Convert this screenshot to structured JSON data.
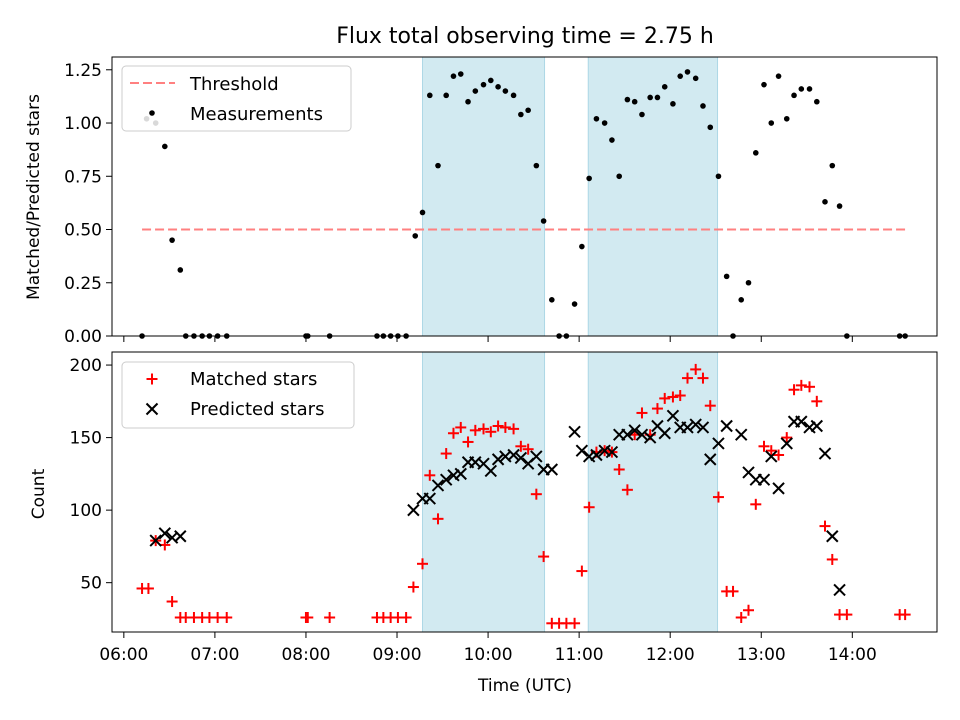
{
  "figure": {
    "title": "Flux total observing time = 2.75 h"
  },
  "colors": {
    "threshold": "#ff8080",
    "measurement": "#000000",
    "matched": "#ff0000",
    "predicted": "#000000",
    "span_fill": "#add8e6"
  },
  "chart_data": [
    {
      "type": "scatter",
      "ylabel": "Matched/Predicted stars",
      "xlim": [
        5.87,
        14.93
      ],
      "ylim": [
        0,
        1.31
      ],
      "yticks": [
        0.0,
        0.25,
        0.5,
        0.75,
        1.0,
        1.25
      ],
      "ytick_labels": [
        "0.00",
        "0.25",
        "0.50",
        "0.75",
        "1.00",
        "1.25"
      ],
      "highlight_spans": [
        [
          9.28,
          10.62
        ],
        [
          11.1,
          12.52
        ]
      ],
      "legend": {
        "position": "upper-left",
        "entries": [
          "Threshold",
          "Measurements"
        ]
      },
      "series": [
        {
          "name": "Threshold",
          "kind": "dashed-line",
          "x": [
            6.2,
            14.6
          ],
          "y": [
            0.5,
            0.5
          ]
        },
        {
          "name": "Measurements",
          "kind": "dot",
          "x": [
            6.2,
            6.25,
            6.35,
            6.45,
            6.53,
            6.62,
            6.68,
            6.77,
            6.86,
            6.94,
            7.03,
            7.13,
            8.0,
            8.02,
            8.26,
            8.78,
            8.85,
            8.93,
            9.01,
            9.1,
            9.2,
            9.28,
            9.36,
            9.45,
            9.54,
            9.62,
            9.7,
            9.78,
            9.86,
            9.95,
            10.03,
            10.11,
            10.19,
            10.28,
            10.36,
            10.44,
            10.53,
            10.61,
            10.7,
            10.78,
            10.86,
            10.95,
            11.03,
            11.11,
            11.19,
            11.28,
            11.36,
            11.44,
            11.53,
            11.61,
            11.69,
            11.78,
            11.86,
            11.94,
            12.03,
            12.11,
            12.19,
            12.28,
            12.36,
            12.44,
            12.53,
            12.62,
            12.69,
            12.78,
            12.86,
            12.94,
            13.03,
            13.11,
            13.19,
            13.28,
            13.36,
            13.44,
            13.53,
            13.61,
            13.7,
            13.78,
            13.86,
            13.94,
            14.52,
            14.58
          ],
          "y": [
            0.0,
            1.02,
            1.0,
            0.89,
            0.45,
            0.31,
            0.0,
            0.0,
            0.0,
            0.0,
            0.0,
            0.0,
            0.0,
            0.0,
            0.0,
            0.0,
            0.0,
            0.0,
            0.0,
            0.0,
            0.47,
            0.58,
            1.13,
            0.8,
            1.13,
            1.22,
            1.23,
            1.1,
            1.15,
            1.18,
            1.2,
            1.17,
            1.15,
            1.13,
            1.04,
            1.06,
            0.8,
            0.54,
            0.17,
            0.0,
            0.0,
            0.15,
            0.42,
            0.74,
            1.02,
            1.0,
            0.92,
            0.75,
            1.11,
            1.1,
            1.04,
            1.12,
            1.12,
            1.17,
            1.09,
            1.22,
            1.24,
            1.21,
            1.08,
            0.98,
            0.75,
            0.28,
            0.0,
            0.17,
            0.25,
            0.86,
            1.18,
            1.0,
            1.22,
            1.02,
            1.13,
            1.16,
            1.16,
            1.1,
            0.63,
            0.8,
            0.61,
            0.0,
            0.0,
            0.0
          ]
        }
      ]
    },
    {
      "type": "scatter",
      "xlabel": "Time (UTC)",
      "ylabel": "Count",
      "xlim": [
        5.87,
        14.93
      ],
      "ylim": [
        16,
        209
      ],
      "xticks": [
        6,
        7,
        8,
        9,
        10,
        11,
        12,
        13,
        14
      ],
      "xtick_labels": [
        "06:00",
        "07:00",
        "08:00",
        "09:00",
        "10:00",
        "11:00",
        "12:00",
        "13:00",
        "14:00"
      ],
      "yticks": [
        50,
        100,
        150,
        200
      ],
      "ytick_labels": [
        "50",
        "100",
        "150",
        "200"
      ],
      "highlight_spans": [
        [
          9.28,
          10.62
        ],
        [
          11.1,
          12.52
        ]
      ],
      "legend": {
        "position": "upper-left",
        "entries": [
          "Matched stars",
          "Predicted stars"
        ]
      },
      "series": [
        {
          "name": "Matched stars",
          "kind": "plus",
          "x": [
            6.2,
            6.27,
            6.35,
            6.45,
            6.53,
            6.62,
            6.68,
            6.77,
            6.86,
            6.94,
            7.03,
            7.13,
            8.0,
            8.02,
            8.26,
            8.78,
            8.85,
            8.93,
            9.01,
            9.1,
            9.18,
            9.28,
            9.36,
            9.45,
            9.54,
            9.62,
            9.7,
            9.78,
            9.86,
            9.95,
            10.03,
            10.11,
            10.19,
            10.28,
            10.36,
            10.44,
            10.53,
            10.61,
            10.7,
            10.78,
            10.86,
            10.95,
            11.03,
            11.11,
            11.19,
            11.28,
            11.36,
            11.44,
            11.53,
            11.61,
            11.69,
            11.78,
            11.86,
            11.94,
            12.03,
            12.11,
            12.19,
            12.28,
            12.36,
            12.44,
            12.53,
            12.62,
            12.69,
            12.78,
            12.86,
            12.94,
            13.03,
            13.11,
            13.19,
            13.28,
            13.36,
            13.44,
            13.53,
            13.61,
            13.7,
            13.78,
            13.86,
            13.94,
            14.52,
            14.58
          ],
          "y": [
            46,
            46,
            79,
            76,
            37,
            26,
            26,
            26,
            26,
            26,
            26,
            26,
            26,
            26,
            26,
            26,
            26,
            26,
            26,
            26,
            47,
            63,
            124,
            94,
            139,
            153,
            157,
            147,
            155,
            156,
            154,
            158,
            157,
            156,
            144,
            142,
            111,
            68,
            22,
            22,
            22,
            22,
            58,
            102,
            140,
            141,
            140,
            128,
            114,
            152,
            167,
            152,
            170,
            177,
            178,
            179,
            191,
            197,
            191,
            172,
            109,
            44,
            44,
            26,
            31,
            104,
            144,
            141,
            138,
            150,
            183,
            186,
            185,
            175,
            89,
            66,
            28,
            28,
            28,
            28
          ]
        },
        {
          "name": "Predicted stars",
          "kind": "x",
          "x": [
            6.35,
            6.45,
            6.53,
            6.62,
            9.18,
            9.28,
            9.36,
            9.45,
            9.54,
            9.62,
            9.7,
            9.78,
            9.86,
            9.95,
            10.03,
            10.11,
            10.19,
            10.28,
            10.36,
            10.44,
            10.53,
            10.61,
            10.7,
            10.95,
            11.03,
            11.11,
            11.19,
            11.28,
            11.36,
            11.44,
            11.53,
            11.61,
            11.69,
            11.78,
            11.86,
            11.94,
            12.03,
            12.11,
            12.19,
            12.28,
            12.36,
            12.44,
            12.53,
            12.62,
            12.78,
            12.86,
            12.94,
            13.03,
            13.11,
            13.19,
            13.28,
            13.36,
            13.44,
            13.53,
            13.61,
            13.7,
            13.78,
            13.86
          ],
          "y": [
            79,
            84,
            81,
            82,
            100,
            108,
            108,
            117,
            121,
            124,
            125,
            133,
            133,
            132,
            127,
            135,
            137,
            138,
            136,
            132,
            137,
            128,
            128,
            154,
            141,
            137,
            138,
            141,
            140,
            152,
            152,
            155,
            152,
            150,
            158,
            153,
            165,
            157,
            157,
            159,
            157,
            135,
            146,
            158,
            152,
            126,
            121,
            121,
            137,
            115,
            146,
            161,
            161,
            157,
            158,
            139,
            82,
            45
          ]
        }
      ]
    }
  ]
}
